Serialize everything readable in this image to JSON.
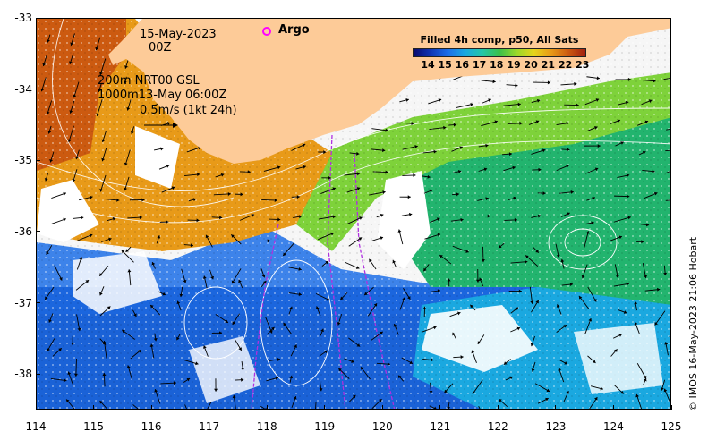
{
  "map": {
    "date_label": "15-May-2023",
    "time_label": "00Z",
    "depth_line_1": "200m  NRT00 GSL",
    "depth_line_2": "1000m13-May 06:00Z",
    "velocity_scale": "0.5m/s (1kt 24h)",
    "argo_label": "Argo",
    "argo_color": "#ff00ff",
    "land_color": "#fdcb98",
    "credit": "© IMOS 16-May-2023 21:06 Hobart"
  },
  "legend": {
    "title": "Filled 4h comp, p50, All Sats",
    "ticks": [
      "14",
      "15",
      "16",
      "17",
      "18",
      "19",
      "20",
      "21",
      "22",
      "23"
    ],
    "colors": [
      "#0a0a6e",
      "#1036b4",
      "#1c6ee8",
      "#1aa8e0",
      "#22c6a8",
      "#3ac04a",
      "#9ad82a",
      "#e6d41a",
      "#e89a18",
      "#cc5a10",
      "#a02010"
    ]
  },
  "axes": {
    "x_ticks": [
      "114",
      "115",
      "116",
      "117",
      "118",
      "119",
      "120",
      "121",
      "122",
      "123",
      "124",
      "125"
    ],
    "y_ticks": [
      "-33",
      "-34",
      "-35",
      "-36",
      "-37",
      "-38"
    ],
    "x_range": [
      114,
      125
    ],
    "y_range": [
      -38.5,
      -33
    ]
  }
}
